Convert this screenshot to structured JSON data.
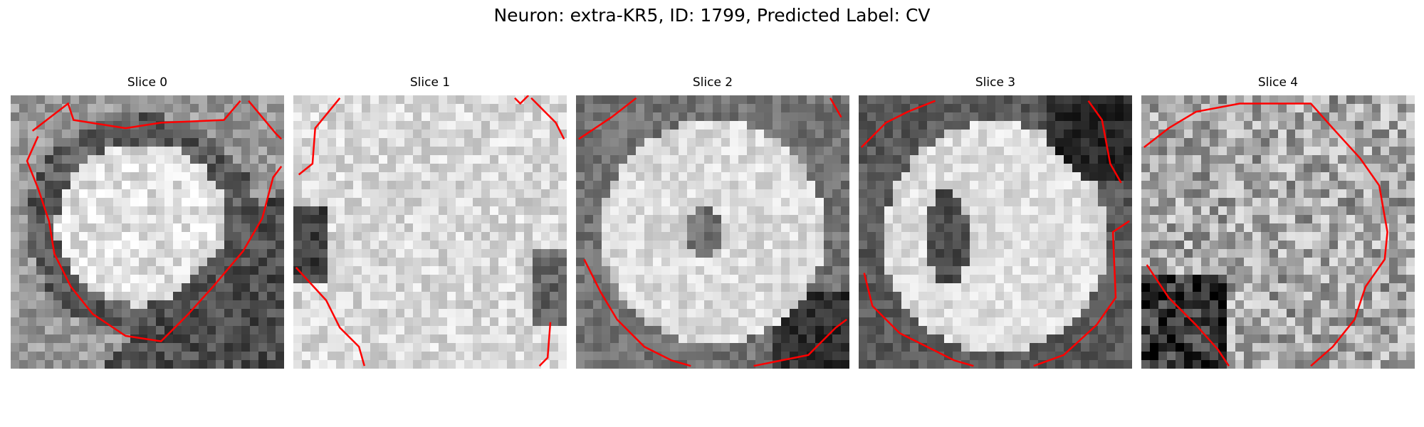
{
  "figure": {
    "title": "Neuron: extra-KR5, ID: 1799, Predicted Label: CV"
  },
  "panels": [
    {
      "title": "Slice 0"
    },
    {
      "title": "Slice 1"
    },
    {
      "title": "Slice 2"
    },
    {
      "title": "Slice 3"
    },
    {
      "title": "Slice 4"
    }
  ],
  "colors": {
    "contour": "#ff0000",
    "background": "#ffffff"
  }
}
